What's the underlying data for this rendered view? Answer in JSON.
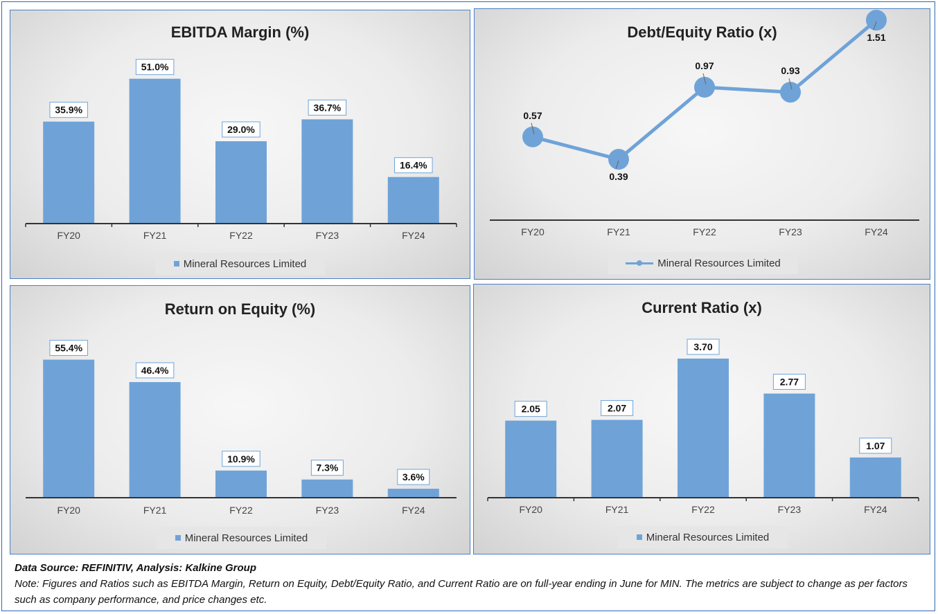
{
  "colors": {
    "bar": "#6fa3d8",
    "line": "#6fa3d8",
    "border": "#4a7fc7"
  },
  "charts": {
    "ebitda": {
      "title": "EBITDA Margin (%)",
      "legend": "Mineral Resources Limited",
      "legend_icon": "bar-swatch"
    },
    "de": {
      "title": "Debt/Equity Ratio (x)",
      "legend": "Mineral Resources Limited",
      "legend_icon": "line-marker-swatch"
    },
    "roe": {
      "title": "Return on Equity (%)",
      "legend": "Mineral Resources Limited",
      "legend_icon": "bar-swatch"
    },
    "cr": {
      "title": "Current Ratio (x)",
      "legend": "Mineral Resources Limited",
      "legend_icon": "bar-swatch"
    }
  },
  "chart_data": [
    {
      "id": "ebitda",
      "type": "bar",
      "title": "EBITDA Margin (%)",
      "categories": [
        "FY20",
        "FY21",
        "FY22",
        "FY23",
        "FY24"
      ],
      "series": [
        {
          "name": "Mineral Resources Limited",
          "values": [
            35.9,
            51.0,
            29.0,
            36.7,
            16.4
          ]
        }
      ],
      "data_labels": [
        "35.9%",
        "51.0%",
        "29.0%",
        "36.7%",
        "16.4%"
      ],
      "ylim": [
        0,
        58
      ],
      "grid": false,
      "legend_position": "bottom"
    },
    {
      "id": "de",
      "type": "line",
      "title": "Debt/Equity Ratio (x)",
      "categories": [
        "FY20",
        "FY21",
        "FY22",
        "FY23",
        "FY24"
      ],
      "series": [
        {
          "name": "Mineral Resources Limited",
          "values": [
            0.57,
            0.39,
            0.97,
            0.93,
            1.51
          ]
        }
      ],
      "data_labels": [
        "0.57",
        "0.39",
        "0.97",
        "0.93",
        "1.51"
      ],
      "ylim": [
        -0.1,
        1.6
      ],
      "grid": false,
      "legend_position": "bottom"
    },
    {
      "id": "roe",
      "type": "bar",
      "title": "Return on Equity (%)",
      "categories": [
        "FY20",
        "FY21",
        "FY22",
        "FY23",
        "FY24"
      ],
      "series": [
        {
          "name": "Mineral Resources Limited",
          "values": [
            55.4,
            46.4,
            10.9,
            7.3,
            3.6
          ]
        }
      ],
      "data_labels": [
        "55.4%",
        "46.4%",
        "10.9%",
        "7.3%",
        "3.6%"
      ],
      "ylim": [
        0,
        60
      ],
      "grid": false,
      "legend_position": "bottom"
    },
    {
      "id": "cr",
      "type": "bar",
      "title": "Current Ratio (x)",
      "categories": [
        "FY20",
        "FY21",
        "FY22",
        "FY23",
        "FY24"
      ],
      "series": [
        {
          "name": "Mineral Resources Limited",
          "values": [
            2.05,
            2.07,
            3.7,
            2.77,
            1.07
          ]
        }
      ],
      "data_labels": [
        "2.05",
        "2.07",
        "3.70",
        "2.77",
        "1.07"
      ],
      "ylim": [
        0,
        4.05
      ],
      "grid": false,
      "legend_position": "bottom"
    }
  ],
  "footer": {
    "source": "Data Source: REFINITIV, Analysis: Kalkine Group",
    "note": "Note: Figures and Ratios such as EBITDA Margin, Return on Equity, Debt/Equity Ratio, and Current Ratio are on full-year ending in June for MIN. The metrics are subject to change as per factors such as company performance, and price changes etc."
  }
}
